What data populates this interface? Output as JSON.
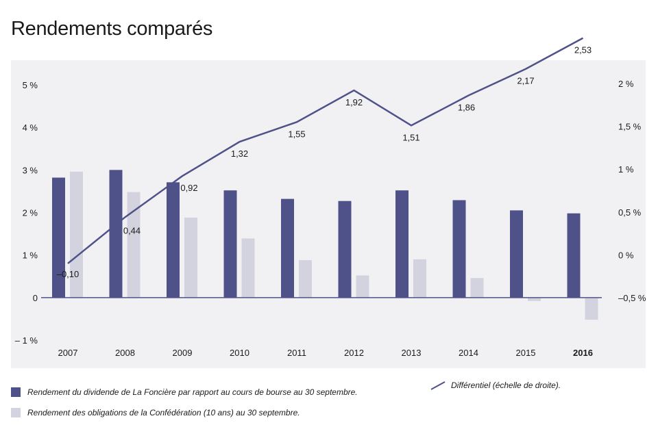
{
  "title": "Rendements comparés",
  "colors": {
    "dividend": "#4f5189",
    "bond": "#d2d3de",
    "line": "#4f5189",
    "panel": "#f1f1f3"
  },
  "chart_data": {
    "type": "bar",
    "categories": [
      "2007",
      "2008",
      "2009",
      "2010",
      "2011",
      "2012",
      "2013",
      "2014",
      "2015",
      "2016"
    ],
    "highlight_category": "2016",
    "series": [
      {
        "name": "Rendement du dividende de La Foncière par rapport au cours de bourse au 30 septembre.",
        "kind": "bar",
        "axis": "left",
        "values": [
          2.82,
          3.0,
          2.71,
          2.52,
          2.32,
          2.27,
          2.52,
          2.29,
          2.05,
          1.98
        ]
      },
      {
        "name": "Rendement des obligations de la Confédération (10 ans) au 30 septembre.",
        "kind": "bar",
        "axis": "left",
        "values": [
          2.96,
          2.48,
          1.88,
          1.39,
          0.88,
          0.52,
          0.9,
          0.46,
          -0.08,
          -0.52
        ]
      },
      {
        "name": "Différentiel (échelle de droite).",
        "kind": "line",
        "axis": "right",
        "values": [
          -0.1,
          0.44,
          0.92,
          1.32,
          1.55,
          1.92,
          1.51,
          1.86,
          2.17,
          2.53
        ],
        "labels": [
          "–0,10",
          "0,44",
          "0,92",
          "1,32",
          "1,55",
          "1,92",
          "1,51",
          "1,86",
          "2,17",
          "2,53"
        ]
      }
    ],
    "y_left": {
      "ylim": [
        -1,
        5
      ],
      "ticks": [
        -1,
        0,
        1,
        2,
        3,
        4,
        5
      ],
      "tick_labels": [
        "– 1 %",
        "0",
        "1 %",
        "2 %",
        "3 %",
        "4 %",
        "5 %"
      ]
    },
    "y_right": {
      "ylim": [
        -0.5,
        2
      ],
      "ticks": [
        -0.5,
        0,
        0.5,
        1,
        1.5,
        2
      ],
      "tick_labels": [
        "–0,5 %",
        "0 %",
        "0,5 %",
        "1 %",
        "1,5 %",
        "2 %"
      ]
    },
    "grid": false,
    "legend_position": "bottom"
  }
}
